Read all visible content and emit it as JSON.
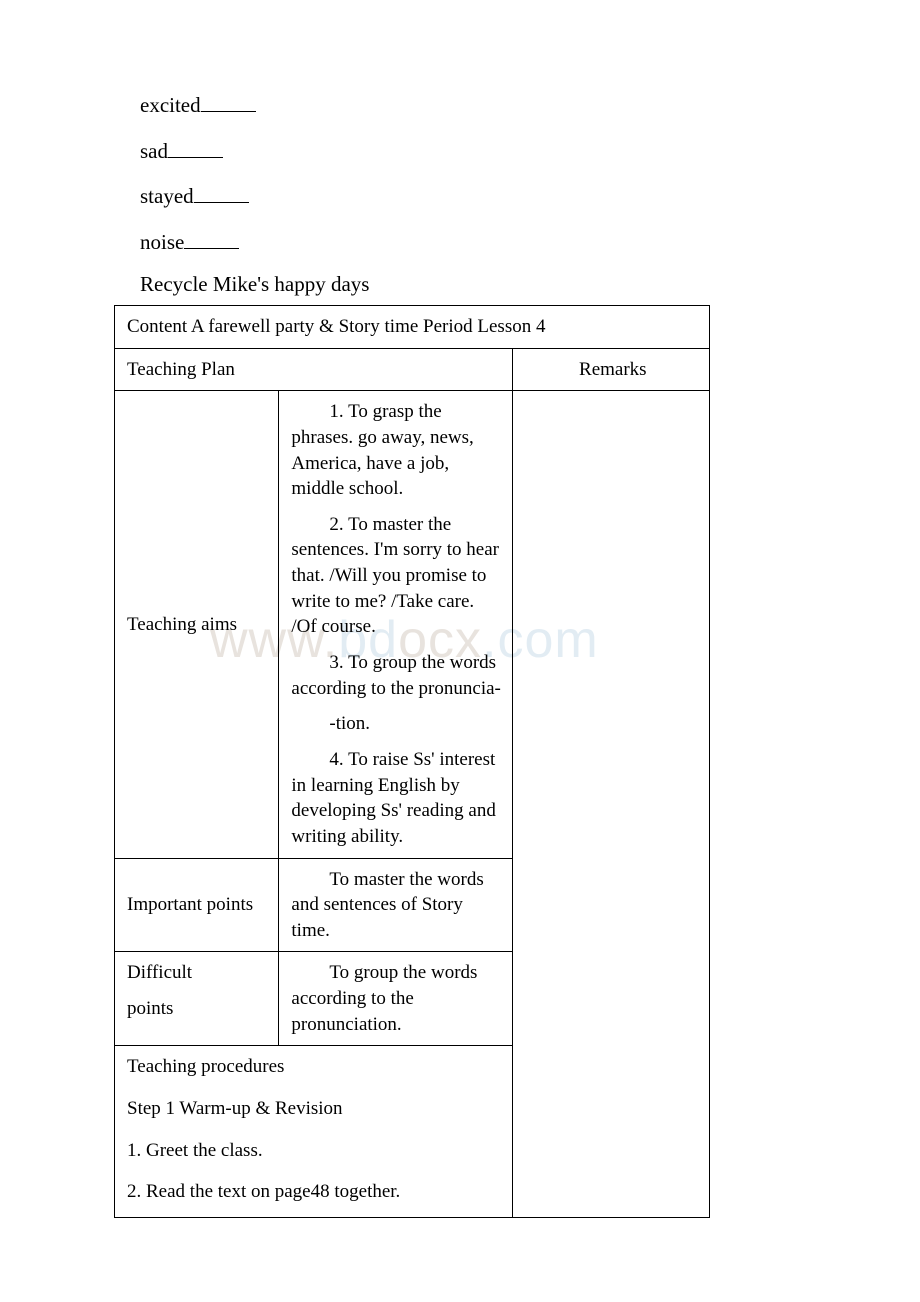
{
  "fill_words": [
    "excited",
    "sad",
    "stayed",
    "noise"
  ],
  "section_title": "Recycle  Mike's happy days",
  "table": {
    "header_content": "Content  A farewell party & Story time     Period Lesson 4",
    "teaching_plan_label": "Teaching  Plan",
    "remarks_label": "Remarks",
    "rows": {
      "aims": {
        "label": "Teaching aims",
        "p1": "1. To grasp the phrases. go away, news, America, have a job, middle school.",
        "p2": "2. To master the sentences. I'm sorry to hear that. /Will you promise to write to me? /Take care. /Of course.",
        "p3": "3. To group the words according to the pronuncia-",
        "p3b": "-tion.",
        "p4": "4. To raise Ss' interest in learning English by developing Ss' reading and writing ability."
      },
      "important": {
        "label": "Important points",
        "content": "To master the words and sentences of Story time."
      },
      "difficult": {
        "label1": "Difficult",
        "label2": "points",
        "content": "To group the words according to the pronunciation."
      },
      "procedures": {
        "p1": "Teaching procedures",
        "p2": "Step 1 Warm-up & Revision",
        "p3": "1. Greet the class.",
        "p4": "2. Read the text on page48 together."
      }
    }
  },
  "watermark": {
    "part1": "www.",
    "part2": "bd",
    "part3": "ocx",
    "part4": ".com"
  },
  "colors": {
    "text": "#000000",
    "background": "#ffffff",
    "border": "#000000",
    "watermark_warm": "#e8e3de",
    "watermark_cool": "#e2ecf3"
  }
}
